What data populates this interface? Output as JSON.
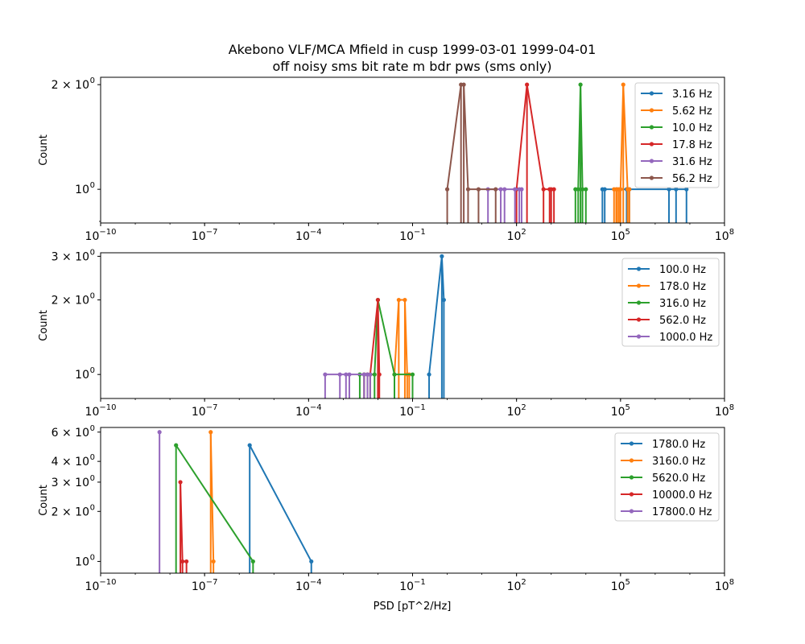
{
  "figure": {
    "title_line1": "Akebono VLF/MCA Mfield in cusp 1999-03-01 1999-04-01",
    "title_line2": "off noisy sms bit rate m bdr pws (sms only)",
    "xlabel": "PSD [pT^2/Hz]"
  },
  "colors": [
    "#1f77b4",
    "#ff7f0e",
    "#2ca02c",
    "#d62728",
    "#9467bd",
    "#8c564b"
  ],
  "chart_data": [
    {
      "type": "line",
      "xscale": "log",
      "yscale": "log",
      "xlim": [
        1e-10,
        100000000.0
      ],
      "ylim": [
        0.8,
        2.1
      ],
      "xticks": [
        {
          "v": 1e-10,
          "base": "10",
          "exp": "−10"
        },
        {
          "v": 1e-07,
          "base": "10",
          "exp": "−7"
        },
        {
          "v": 0.0001,
          "base": "10",
          "exp": "−4"
        },
        {
          "v": 0.1,
          "base": "10",
          "exp": "−1"
        },
        {
          "v": 100,
          "base": "10",
          "exp": "2"
        },
        {
          "v": 100000.0,
          "base": "10",
          "exp": "5"
        },
        {
          "v": 100000000.0,
          "base": "10",
          "exp": "8"
        }
      ],
      "yticks": [
        {
          "v": 1,
          "base": "10",
          "exp": "0"
        },
        {
          "v": 2,
          "base": "2 × 10",
          "exp": "0"
        }
      ],
      "ylabel": "Count",
      "legend": "upper right",
      "series": [
        {
          "name": "3.16 Hz",
          "points": [
            [
              30000.0,
              1
            ],
            [
              35000.0,
              1
            ],
            [
              150000.0,
              1
            ],
            [
              180000.0,
              1
            ],
            [
              2500000.0,
              1
            ],
            [
              4000000.0,
              1
            ],
            [
              8000000.0,
              1
            ]
          ]
        },
        {
          "name": "5.62 Hz",
          "points": [
            [
              65000.0,
              1
            ],
            [
              75000.0,
              1
            ],
            [
              80000.0,
              1
            ],
            [
              90000.0,
              1
            ],
            [
              100000.0,
              1
            ],
            [
              120000.0,
              2
            ],
            [
              160000.0,
              1
            ],
            [
              180000.0,
              1
            ]
          ]
        },
        {
          "name": "10.0 Hz",
          "points": [
            [
              5000.0,
              1
            ],
            [
              6000.0,
              1
            ],
            [
              7000.0,
              2
            ],
            [
              8000.0,
              1
            ],
            [
              10000.0,
              1
            ]
          ]
        },
        {
          "name": "17.8 Hz",
          "points": [
            [
              100,
              1
            ],
            [
              200,
              2
            ],
            [
              600,
              1
            ],
            [
              900,
              1
            ],
            [
              1000,
              1
            ],
            [
              1200,
              1
            ]
          ]
        },
        {
          "name": "31.6 Hz",
          "points": [
            [
              15,
              1
            ],
            [
              35,
              1
            ],
            [
              45,
              1
            ],
            [
              90,
              1
            ],
            [
              120,
              1
            ],
            [
              140,
              1
            ]
          ]
        },
        {
          "name": "56.2 Hz",
          "points": [
            [
              1,
              1
            ],
            [
              2.5,
              2
            ],
            [
              3,
              2
            ],
            [
              4,
              1
            ],
            [
              8,
              1
            ],
            [
              25,
              1
            ]
          ]
        }
      ]
    },
    {
      "type": "line",
      "xscale": "log",
      "yscale": "log",
      "xlim": [
        1e-10,
        100000000.0
      ],
      "ylim": [
        0.8,
        3.1
      ],
      "xticks": [
        {
          "v": 1e-10,
          "base": "10",
          "exp": "−10"
        },
        {
          "v": 1e-07,
          "base": "10",
          "exp": "−7"
        },
        {
          "v": 0.0001,
          "base": "10",
          "exp": "−4"
        },
        {
          "v": 0.1,
          "base": "10",
          "exp": "−1"
        },
        {
          "v": 100,
          "base": "10",
          "exp": "2"
        },
        {
          "v": 100000.0,
          "base": "10",
          "exp": "5"
        },
        {
          "v": 100000000.0,
          "base": "10",
          "exp": "8"
        }
      ],
      "yticks": [
        {
          "v": 1,
          "base": "10",
          "exp": "0"
        },
        {
          "v": 2,
          "base": "2 × 10",
          "exp": "0"
        },
        {
          "v": 3,
          "base": "3 × 10",
          "exp": "0"
        }
      ],
      "ylabel": "Count",
      "legend": "upper right",
      "series": [
        {
          "name": "100.0 Hz",
          "points": [
            [
              0.3,
              1
            ],
            [
              0.7,
              3
            ],
            [
              0.8,
              2
            ]
          ]
        },
        {
          "name": "178.0 Hz",
          "points": [
            [
              0.03,
              1
            ],
            [
              0.04,
              2
            ],
            [
              0.06,
              2
            ],
            [
              0.07,
              1
            ],
            [
              0.08,
              1
            ]
          ]
        },
        {
          "name": "316.0 Hz",
          "points": [
            [
              0.003,
              1
            ],
            [
              0.004,
              1
            ],
            [
              0.005,
              1
            ],
            [
              0.006,
              1
            ],
            [
              0.008,
              1
            ],
            [
              0.01,
              2
            ],
            [
              0.03,
              1
            ],
            [
              0.1,
              1
            ]
          ]
        },
        {
          "name": "562.0 Hz",
          "points": [
            [
              0.004,
              1
            ],
            [
              0.005,
              1
            ],
            [
              0.006,
              1
            ],
            [
              0.01,
              2
            ],
            [
              0.011,
              1
            ]
          ]
        },
        {
          "name": "1000.0 Hz",
          "points": [
            [
              0.0003,
              1
            ],
            [
              0.0008,
              1
            ],
            [
              0.0012,
              1
            ],
            [
              0.0015,
              1
            ],
            [
              0.004,
              1
            ],
            [
              0.005,
              1
            ],
            [
              0.006,
              1
            ]
          ]
        }
      ]
    },
    {
      "type": "line",
      "xscale": "log",
      "yscale": "log",
      "xlim": [
        1e-10,
        100000000.0
      ],
      "ylim": [
        0.85,
        6.4
      ],
      "xticks": [
        {
          "v": 1e-10,
          "base": "10",
          "exp": "−10"
        },
        {
          "v": 1e-07,
          "base": "10",
          "exp": "−7"
        },
        {
          "v": 0.0001,
          "base": "10",
          "exp": "−4"
        },
        {
          "v": 0.1,
          "base": "10",
          "exp": "−1"
        },
        {
          "v": 100,
          "base": "10",
          "exp": "2"
        },
        {
          "v": 100000.0,
          "base": "10",
          "exp": "5"
        },
        {
          "v": 100000000.0,
          "base": "10",
          "exp": "8"
        }
      ],
      "yticks": [
        {
          "v": 1,
          "base": "10",
          "exp": "0"
        },
        {
          "v": 2,
          "base": "2 × 10",
          "exp": "0"
        },
        {
          "v": 3,
          "base": "3 × 10",
          "exp": "0"
        },
        {
          "v": 4,
          "base": "4 × 10",
          "exp": "0"
        },
        {
          "v": 6,
          "base": "6 × 10",
          "exp": "0"
        }
      ],
      "ylabel": "Count",
      "legend": "upper right",
      "series": [
        {
          "name": "1780.0 Hz",
          "points": [
            [
              2e-06,
              5
            ],
            [
              0.00012,
              1
            ]
          ]
        },
        {
          "name": "3160.0 Hz",
          "points": [
            [
              1.5e-07,
              6
            ],
            [
              1.8e-07,
              1
            ]
          ]
        },
        {
          "name": "5620.0 Hz",
          "points": [
            [
              1.5e-08,
              5
            ],
            [
              2.5e-06,
              1
            ]
          ]
        },
        {
          "name": "10000.0 Hz",
          "points": [
            [
              2e-08,
              3
            ],
            [
              2.3e-08,
              1
            ],
            [
              3e-08,
              1
            ]
          ]
        },
        {
          "name": "17800.0 Hz",
          "points": [
            [
              5e-09,
              6
            ]
          ]
        }
      ]
    }
  ]
}
